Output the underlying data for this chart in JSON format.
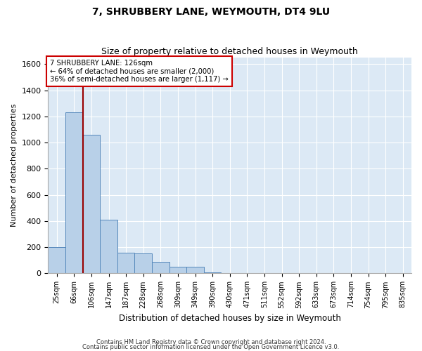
{
  "title": "7, SHRUBBERY LANE, WEYMOUTH, DT4 9LU",
  "subtitle": "Size of property relative to detached houses in Weymouth",
  "xlabel": "Distribution of detached houses by size in Weymouth",
  "ylabel": "Number of detached properties",
  "footnote1": "Contains HM Land Registry data © Crown copyright and database right 2024.",
  "footnote2": "Contains public sector information licensed under the Open Government Licence v3.0.",
  "bin_labels": [
    "25sqm",
    "66sqm",
    "106sqm",
    "147sqm",
    "187sqm",
    "228sqm",
    "268sqm",
    "309sqm",
    "349sqm",
    "390sqm",
    "430sqm",
    "471sqm",
    "511sqm",
    "552sqm",
    "592sqm",
    "633sqm",
    "673sqm",
    "714sqm",
    "754sqm",
    "795sqm",
    "835sqm"
  ],
  "bar_values": [
    200,
    1230,
    1060,
    410,
    160,
    155,
    90,
    50,
    50,
    10,
    5,
    0,
    0,
    0,
    0,
    0,
    0,
    0,
    0,
    0,
    0
  ],
  "bar_color": "#b8d0e8",
  "bar_edgecolor": "#5588bb",
  "background_color": "#dce9f5",
  "grid_color": "#ffffff",
  "property_line_x": 1.5,
  "property_line_color": "#990000",
  "annotation_box_text": "7 SHRUBBERY LANE: 126sqm\n← 64% of detached houses are smaller (2,000)\n36% of semi-detached houses are larger (1,117) →",
  "annotation_box_color": "#cc0000",
  "fig_background": "#ffffff",
  "ylim": [
    0,
    1650
  ],
  "yticks": [
    0,
    200,
    400,
    600,
    800,
    1000,
    1200,
    1400,
    1600
  ]
}
